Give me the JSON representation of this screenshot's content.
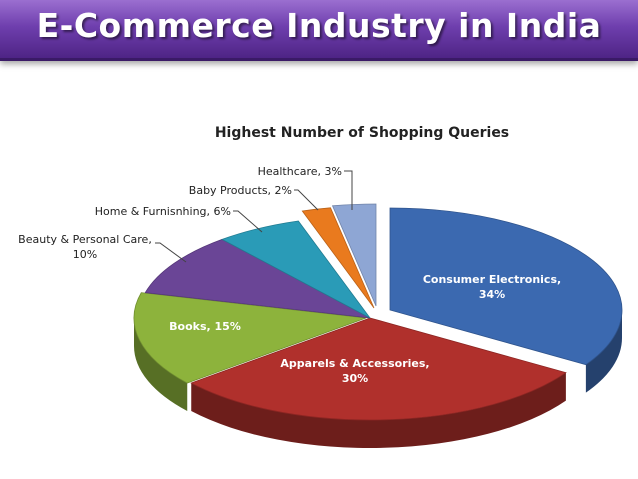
{
  "header": {
    "title": "E-Commerce Industry in India"
  },
  "chart_data": {
    "type": "pie",
    "title": "Highest Number of Shopping Queries",
    "slices": [
      {
        "name": "Consumer Electronics",
        "label": [
          "Consumer Electronics,",
          "34%"
        ],
        "value": 34,
        "color": "#3b69b0"
      },
      {
        "name": "Apparels & Accessories",
        "label": [
          "Apparels & Accessories,",
          "30%"
        ],
        "value": 30,
        "color": "#b0302c"
      },
      {
        "name": "Books",
        "label": [
          "Books, 15%"
        ],
        "value": 15,
        "color": "#8db33c"
      },
      {
        "name": "Beauty & Personal Care",
        "label": [
          "Beauty & Personal Care,",
          "10%"
        ],
        "value": 10,
        "color": "#6a4596"
      },
      {
        "name": "Home & Furnisnhing",
        "label": [
          "Home & Furnisnhing, 6%"
        ],
        "value": 6,
        "color": "#2a9bb7"
      },
      {
        "name": "Baby Products",
        "label": [
          "Baby Products, 2%"
        ],
        "value": 2,
        "color": "#e97a1e"
      },
      {
        "name": "Healthcare",
        "label": [
          "Healthcare, 3%"
        ],
        "value": 3,
        "color": "#8ea6d4"
      }
    ]
  }
}
